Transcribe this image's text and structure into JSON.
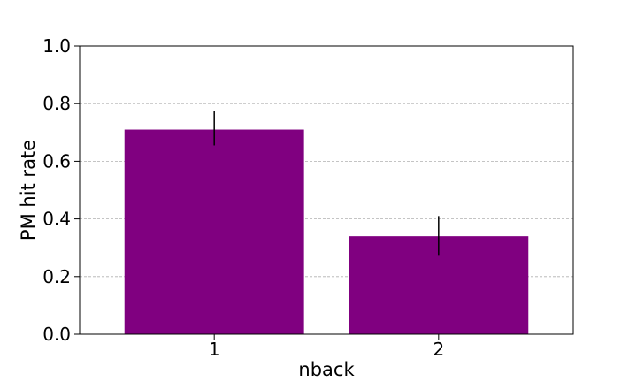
{
  "chart_data": {
    "type": "bar",
    "categories": [
      "1",
      "2"
    ],
    "values": [
      0.71,
      0.34
    ],
    "error_low": [
      0.655,
      0.275
    ],
    "error_high": [
      0.775,
      0.41
    ],
    "xlabel": "nback",
    "ylabel": "PM hit rate",
    "ylim": [
      0.0,
      1.0
    ],
    "yticks": [
      "0.0",
      "0.2",
      "0.4",
      "0.6",
      "0.8",
      "1.0"
    ],
    "grid": "y-dashed",
    "colors": {
      "bar": "#800080",
      "error_bar": "#000000",
      "grid": "#b0b0b0",
      "axis": "#000000"
    }
  }
}
